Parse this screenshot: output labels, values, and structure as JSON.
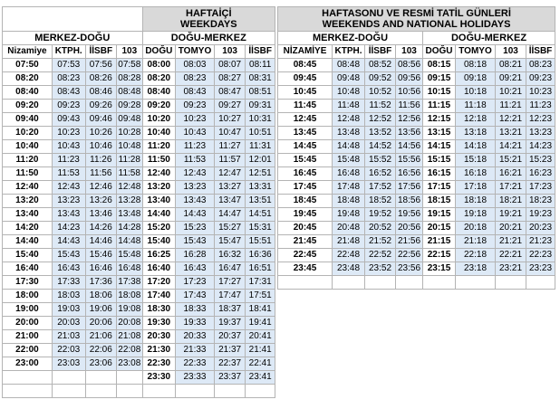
{
  "weekdays": {
    "title_line1": "HAFTAİÇİ",
    "title_line2": "WEEKDAYS",
    "group_left": "MERKEZ-DOĞU",
    "group_right": "DOĞU-MERKEZ",
    "headers": [
      "Nizamiye",
      "KTPH.",
      "İİSBF",
      "103",
      "DOĞU",
      "TOMYO",
      "103",
      "İİSBF"
    ],
    "rows": [
      [
        "07:50",
        "07:53",
        "07:56",
        "07:58",
        "08:00",
        "08:03",
        "08:07",
        "08:11"
      ],
      [
        "08:20",
        "08:23",
        "08:26",
        "08:28",
        "08:20",
        "08:23",
        "08:27",
        "08:31"
      ],
      [
        "08:40",
        "08:43",
        "08:46",
        "08:48",
        "08:40",
        "08:43",
        "08:47",
        "08:51"
      ],
      [
        "09:20",
        "09:23",
        "09:26",
        "09:28",
        "09:20",
        "09:23",
        "09:27",
        "09:31"
      ],
      [
        "09:40",
        "09:43",
        "09:46",
        "09:48",
        "10:20",
        "10:23",
        "10:27",
        "10:31"
      ],
      [
        "10:20",
        "10:23",
        "10:26",
        "10:28",
        "10:40",
        "10:43",
        "10:47",
        "10:51"
      ],
      [
        "10:40",
        "10:43",
        "10:46",
        "10:48",
        "11:20",
        "11:23",
        "11:27",
        "11:31"
      ],
      [
        "11:20",
        "11:23",
        "11:26",
        "11:28",
        "11:50",
        "11:53",
        "11:57",
        "12:01"
      ],
      [
        "11:50",
        "11:53",
        "11:56",
        "11:58",
        "12:40",
        "12:43",
        "12:47",
        "12:51"
      ],
      [
        "12:40",
        "12:43",
        "12:46",
        "12:48",
        "13:20",
        "13:23",
        "13:27",
        "13:31"
      ],
      [
        "13:20",
        "13:23",
        "13:26",
        "13:28",
        "13:40",
        "13:43",
        "13:47",
        "13:51"
      ],
      [
        "13:40",
        "13:43",
        "13:46",
        "13:48",
        "14:40",
        "14:43",
        "14:47",
        "14:51"
      ],
      [
        "14:20",
        "14:23",
        "14:26",
        "14:28",
        "15:20",
        "15:23",
        "15:27",
        "15:31"
      ],
      [
        "14:40",
        "14:43",
        "14:46",
        "14:48",
        "15:40",
        "15:43",
        "15:47",
        "15:51"
      ],
      [
        "15:40",
        "15:43",
        "15:46",
        "15:48",
        "16:25",
        "16:28",
        "16:32",
        "16:36"
      ],
      [
        "16:40",
        "16:43",
        "16:46",
        "16:48",
        "16:40",
        "16:43",
        "16:47",
        "16:51"
      ],
      [
        "17:30",
        "17:33",
        "17:36",
        "17:38",
        "17:20",
        "17:23",
        "17:27",
        "17:31"
      ],
      [
        "18:00",
        "18:03",
        "18:06",
        "18:08",
        "17:40",
        "17:43",
        "17:47",
        "17:51"
      ],
      [
        "19:00",
        "19:03",
        "19:06",
        "19:08",
        "18:30",
        "18:33",
        "18:37",
        "18:41"
      ],
      [
        "20:00",
        "20:03",
        "20:06",
        "20:08",
        "19:30",
        "19:33",
        "19:37",
        "19:41"
      ],
      [
        "21:00",
        "21:03",
        "21:06",
        "21:08",
        "20:30",
        "20:33",
        "20:37",
        "20:41"
      ],
      [
        "22:00",
        "22:03",
        "22:06",
        "22:08",
        "21:30",
        "21:33",
        "21:37",
        "21:41"
      ],
      [
        "23:00",
        "23:03",
        "23:06",
        "23:08",
        "22:30",
        "22:33",
        "22:37",
        "22:41"
      ],
      [
        "",
        "",
        "",
        "",
        "23:30",
        "23:33",
        "23:37",
        "23:41"
      ],
      [
        "",
        "",
        "",
        "",
        "",
        "",
        "",
        ""
      ]
    ]
  },
  "weekends": {
    "title_line1": "HAFTASONU VE RESMİ TATİL GÜNLERİ",
    "title_line2": "WEEKENDS AND NATIONAL HOLIDAYS",
    "group_left": "MERKEZ-DOĞU",
    "group_right": "DOĞU-MERKEZ",
    "headers": [
      "NİZAMİYE",
      "KTPH.",
      "İİSBF",
      "103",
      "DOĞU",
      "TOMYO",
      "103",
      "İİSBF"
    ],
    "rows": [
      [
        "08:45",
        "08:48",
        "08:52",
        "08:56",
        "08:15",
        "08:18",
        "08:21",
        "08:23"
      ],
      [
        "09:45",
        "09:48",
        "09:52",
        "09:56",
        "09:15",
        "09:18",
        "09:21",
        "09:23"
      ],
      [
        "10:45",
        "10:48",
        "10:52",
        "10:56",
        "10:15",
        "10:18",
        "10:21",
        "10:23"
      ],
      [
        "11:45",
        "11:48",
        "11:52",
        "11:56",
        "11:15",
        "11:18",
        "11:21",
        "11:23"
      ],
      [
        "12:45",
        "12:48",
        "12:52",
        "12:56",
        "12:15",
        "12:18",
        "12:21",
        "12:23"
      ],
      [
        "13:45",
        "13:48",
        "13:52",
        "13:56",
        "13:15",
        "13:18",
        "13:21",
        "13:23"
      ],
      [
        "14:45",
        "14:48",
        "14:52",
        "14:56",
        "14:15",
        "14:18",
        "14:21",
        "14:23"
      ],
      [
        "15:45",
        "15:48",
        "15:52",
        "15:56",
        "15:15",
        "15:18",
        "15:21",
        "15:23"
      ],
      [
        "16:45",
        "16:48",
        "16:52",
        "16:56",
        "16:15",
        "16:18",
        "16:21",
        "16:23"
      ],
      [
        "17:45",
        "17:48",
        "17:52",
        "17:56",
        "17:15",
        "17:18",
        "17:21",
        "17:23"
      ],
      [
        "18:45",
        "18:48",
        "18:52",
        "18:56",
        "18:15",
        "18:18",
        "18:21",
        "18:23"
      ],
      [
        "19:45",
        "19:48",
        "19:52",
        "19:56",
        "19:15",
        "19:18",
        "19:21",
        "19:23"
      ],
      [
        "20:45",
        "20:48",
        "20:52",
        "20:56",
        "20:15",
        "20:18",
        "20:21",
        "20:23"
      ],
      [
        "21:45",
        "21:48",
        "21:52",
        "21:56",
        "21:15",
        "21:18",
        "21:21",
        "21:23"
      ],
      [
        "22:45",
        "22:48",
        "22:52",
        "22:56",
        "22:15",
        "22:18",
        "22:21",
        "22:23"
      ],
      [
        "23:45",
        "23:48",
        "23:52",
        "23:56",
        "23:15",
        "23:18",
        "23:21",
        "23:23"
      ],
      [
        "",
        "",
        "",
        "",
        "",
        "",
        "",
        ""
      ]
    ]
  }
}
